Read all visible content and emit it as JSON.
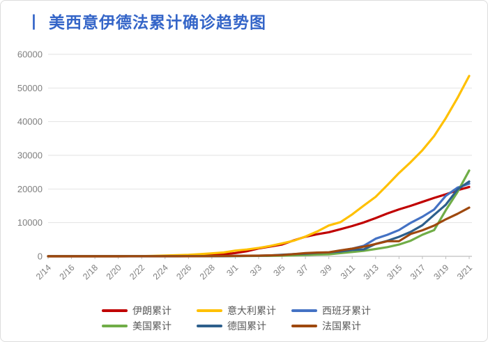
{
  "title": {
    "prefix": "丨",
    "text": "美西意伊德法累计确诊趋势图"
  },
  "colors": {
    "title": "#3465c8",
    "axis_label": "#7f7f7f",
    "legend_text": "#595959",
    "gridline": "#e2e2e2",
    "axis_line": "#bfbfbf",
    "background": "#ffffff"
  },
  "chart_data": {
    "type": "line",
    "title": "丨美西意伊德法累计确诊趋势图",
    "xlabel": "",
    "ylabel": "",
    "ylim": [
      0,
      60000
    ],
    "y_ticks": [
      0,
      10000,
      20000,
      30000,
      40000,
      50000,
      60000
    ],
    "grid": "horizontal",
    "legend_position": "bottom",
    "x_label_every": 2,
    "x": [
      "2/14",
      "2/15",
      "2/16",
      "2/17",
      "2/18",
      "2/19",
      "2/20",
      "2/21",
      "2/22",
      "2/23",
      "2/24",
      "2/25",
      "2/26",
      "2/27",
      "2/28",
      "2/29",
      "3/1",
      "3/2",
      "3/3",
      "3/4",
      "3/5",
      "3/6",
      "3/7",
      "3/8",
      "3/9",
      "3/10",
      "3/11",
      "3/12",
      "3/13",
      "3/14",
      "3/15",
      "3/16",
      "3/17",
      "3/18",
      "3/19",
      "3/20",
      "3/21"
    ],
    "series": [
      {
        "name": "伊朗累计",
        "color": "#c00000",
        "values": [
          0,
          0,
          0,
          0,
          0,
          2,
          5,
          18,
          28,
          43,
          61,
          95,
          139,
          245,
          388,
          593,
          978,
          1501,
          2336,
          2922,
          3513,
          4747,
          5823,
          6566,
          7161,
          8042,
          9000,
          10075,
          11364,
          12729,
          13938,
          14991,
          16169,
          17361,
          18407,
          19644,
          20610
        ]
      },
      {
        "name": "意大利累计",
        "color": "#ffc000",
        "values": [
          3,
          3,
          3,
          3,
          3,
          3,
          3,
          20,
          62,
          155,
          229,
          322,
          453,
          655,
          888,
          1128,
          1694,
          2036,
          2502,
          3089,
          3858,
          4636,
          5883,
          7375,
          9172,
          10149,
          12462,
          15113,
          17660,
          21157,
          24747,
          27980,
          31506,
          35713,
          41035,
          47021,
          53578
        ]
      },
      {
        "name": "西班牙累计",
        "color": "#4472c4",
        "values": [
          2,
          2,
          2,
          2,
          2,
          2,
          2,
          2,
          2,
          2,
          2,
          6,
          13,
          15,
          32,
          45,
          84,
          120,
          165,
          222,
          259,
          400,
          500,
          673,
          1073,
          1695,
          2277,
          3146,
          5232,
          6391,
          7798,
          9942,
          11748,
          13910,
          17963,
          20410,
          21571
        ]
      },
      {
        "name": "美国累计",
        "color": "#70ad47",
        "values": [
          15,
          15,
          15,
          25,
          25,
          25,
          26,
          34,
          35,
          35,
          51,
          51,
          57,
          58,
          60,
          68,
          74,
          98,
          118,
          149,
          217,
          262,
          402,
          518,
          583,
          959,
          1281,
          1663,
          2179,
          2726,
          3499,
          4632,
          6421,
          7783,
          13677,
          19100,
          25489
        ]
      },
      {
        "name": "德国累计",
        "color": "#2d5f8c",
        "values": [
          16,
          16,
          16,
          16,
          16,
          16,
          16,
          16,
          16,
          16,
          16,
          17,
          27,
          46,
          48,
          79,
          130,
          159,
          196,
          262,
          482,
          670,
          799,
          1040,
          1176,
          1457,
          1908,
          2078,
          3675,
          4585,
          5795,
          7272,
          9257,
          12327,
          15320,
          19848,
          22213
        ]
      },
      {
        "name": "法国累计",
        "color": "#9e480e",
        "values": [
          11,
          12,
          12,
          12,
          12,
          12,
          12,
          12,
          12,
          12,
          12,
          12,
          18,
          38,
          57,
          100,
          130,
          191,
          204,
          285,
          377,
          653,
          949,
          1126,
          1209,
          1784,
          2281,
          2876,
          3661,
          4499,
          4499,
          6633,
          7730,
          9134,
          10995,
          12612,
          14459
        ]
      }
    ]
  }
}
